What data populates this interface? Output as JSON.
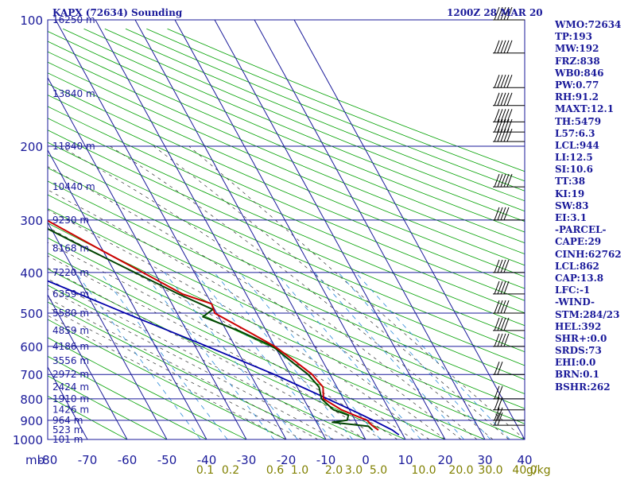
{
  "header": {
    "station": "KAPX (72634) Sounding",
    "time": "1200Z 28 MAR 20"
  },
  "indices": [
    "WMO:72634",
    "TP:193",
    "MW:192",
    "FRZ:838",
    "WB0:846",
    "PW:0.77",
    "RH:91.2",
    "MAXT:12.1",
    "TH:5479",
    "L57:6.3",
    "LCL:944",
    "LI:12.5",
    "SI:10.6",
    "TT:38",
    "KI:19",
    "SW:83",
    "EI:3.1",
    "-PARCEL-",
    "CAPE:29",
    "CINH:62762",
    "LCL:862",
    "CAP:13.8",
    "LFC:-1",
    "-WIND-",
    "STM:284/23",
    "HEL:392",
    "SHR+:0.0",
    "SRDS:73",
    "EHI:0.0",
    "BRN:0.1",
    "BSHR:262"
  ],
  "colors": {
    "grid": "#1a1a9a",
    "dry_adiabat": "#00a000",
    "temperature": "#cc0000",
    "dewpoint": "#004400",
    "parcel": "#0000aa",
    "moist_adiabat": "#333333",
    "mixing_ratio": "#2a8ad8",
    "label_blue": "#1a1a9a",
    "label_olive": "#808000"
  },
  "chart_data": {
    "type": "skew-t",
    "pressure_unit_label": "mb",
    "pressure_levels": [
      100,
      200,
      300,
      400,
      500,
      600,
      700,
      800,
      900,
      1000
    ],
    "temperature_ticks": [
      -80,
      -70,
      -60,
      -50,
      -40,
      -30,
      -20,
      -10,
      0,
      10,
      20,
      30,
      40
    ],
    "mixing_ratio_labels": [
      "0.1",
      "0.2",
      "0.6",
      "1.0",
      "2.0",
      "3.0",
      "5.0",
      "10.0",
      "20.0",
      "30.0",
      "40.0"
    ],
    "mixing_ratio_unit": "g/kg",
    "height_labels": [
      {
        "p": 100,
        "text": "16250 m"
      },
      {
        "p": 150,
        "text": "13840 m"
      },
      {
        "p": 200,
        "text": "11840 m"
      },
      {
        "p": 250,
        "text": "10440 m"
      },
      {
        "p": 300,
        "text": "9230 m"
      },
      {
        "p": 350,
        "text": "8168 m"
      },
      {
        "p": 400,
        "text": "7220 m"
      },
      {
        "p": 450,
        "text": "6359 m"
      },
      {
        "p": 500,
        "text": "5580 m"
      },
      {
        "p": 550,
        "text": "4859 m"
      },
      {
        "p": 600,
        "text": "4186 m"
      },
      {
        "p": 650,
        "text": "3556 m"
      },
      {
        "p": 700,
        "text": "2972 m"
      },
      {
        "p": 750,
        "text": "2424 m"
      },
      {
        "p": 800,
        "text": "1910 m"
      },
      {
        "p": 850,
        "text": "1426 m"
      },
      {
        "p": 900,
        "text": "964 m"
      },
      {
        "p": 950,
        "text": "523 m"
      },
      {
        "p": 1000,
        "text": "101 m"
      }
    ],
    "temperature_profile": [
      [
        950,
        4.5
      ],
      [
        925,
        3.5
      ],
      [
        900,
        3.0
      ],
      [
        875,
        0.5
      ],
      [
        850,
        -2.0
      ],
      [
        800,
        -5.0
      ],
      [
        750,
        -3.5
      ],
      [
        700,
        -4.5
      ],
      [
        650,
        -7.0
      ],
      [
        600,
        -10.0
      ],
      [
        550,
        -15.0
      ],
      [
        500,
        -20.5
      ],
      [
        475,
        -20.0
      ],
      [
        450,
        -26.0
      ],
      [
        400,
        -33.0
      ],
      [
        350,
        -41.0
      ],
      [
        300,
        -50.0
      ],
      [
        250,
        -58.0
      ],
      [
        220,
        -64.0
      ],
      [
        200,
        -70.5
      ],
      [
        180,
        -70.5
      ],
      [
        160,
        -66.0
      ],
      [
        150,
        -67.0
      ],
      [
        130,
        -68.0
      ],
      [
        120,
        -73.0
      ],
      [
        110,
        -72.0
      ],
      [
        100,
        -67.0
      ]
    ],
    "dewpoint_profile": [
      [
        950,
        3.0
      ],
      [
        930,
        2.5
      ],
      [
        910,
        -6.0
      ],
      [
        900,
        -2.0
      ],
      [
        875,
        -1.0
      ],
      [
        850,
        -4.0
      ],
      [
        800,
        -5.5
      ],
      [
        750,
        -4.5
      ],
      [
        700,
        -5.5
      ],
      [
        650,
        -8.0
      ],
      [
        600,
        -10.5
      ],
      [
        550,
        -17.0
      ],
      [
        510,
        -24.0
      ],
      [
        490,
        -20.5
      ],
      [
        450,
        -27.0
      ],
      [
        400,
        -35.0
      ],
      [
        350,
        -44.0
      ],
      [
        300,
        -54.0
      ],
      [
        250,
        -63.0
      ],
      [
        200,
        -76.0
      ],
      [
        180,
        -76.0
      ],
      [
        165,
        -82.0
      ],
      [
        140,
        -86.0
      ],
      [
        120,
        -87.0
      ],
      [
        110,
        -85.0
      ],
      [
        100,
        -83.0
      ]
    ],
    "parcel_profile": [
      [
        975,
        9.0
      ],
      [
        950,
        8.0
      ],
      [
        900,
        4.5
      ],
      [
        862,
        1.5
      ],
      [
        800,
        -4.0
      ],
      [
        700,
        -14.0
      ],
      [
        600,
        -27.0
      ],
      [
        500,
        -43.0
      ],
      [
        400,
        -62.0
      ],
      [
        300,
        -86.0
      ],
      [
        250,
        -100.0
      ]
    ],
    "wind_barbs_pressure": [
      100,
      120,
      145,
      160,
      175,
      185,
      195,
      250,
      300,
      400,
      450,
      500,
      550,
      600,
      700,
      800,
      850,
      900,
      925
    ]
  }
}
